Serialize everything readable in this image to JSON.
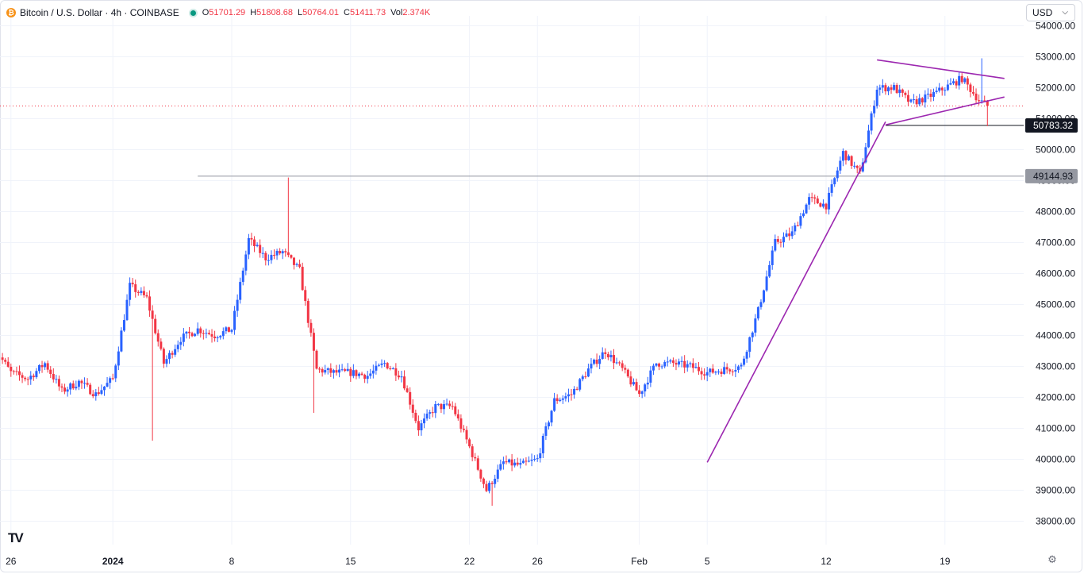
{
  "header": {
    "symbol_title": "Bitcoin / U.S. Dollar · 4h · COINBASE",
    "icon_glyph": "₿",
    "ohlc": [
      {
        "k": "O",
        "v": "51701.29"
      },
      {
        "k": "H",
        "v": "51808.68"
      },
      {
        "k": "L",
        "v": "50764.01"
      },
      {
        "k": "C",
        "v": "51411.73"
      },
      {
        "k": "Vol",
        "v": "2.374K"
      }
    ]
  },
  "currency_select": {
    "value": "USD",
    "chevron_icon": "chevron-down-icon"
  },
  "logo": {
    "text": "TV",
    "icon": "tradingview-logo-icon"
  },
  "settings": {
    "icon": "settings-icon",
    "glyph": "⚙"
  },
  "colors": {
    "up": "#2962ff",
    "down": "#f23645",
    "trendline": "#9c27b0",
    "hline": "#9598a1",
    "grid": "#f0f3fa",
    "axis_text": "#131722"
  },
  "chart_data": {
    "type": "candlestick",
    "title": "Bitcoin / U.S. Dollar · 4h · COINBASE",
    "y_range": [
      37400,
      54300
    ],
    "y_ticks": [
      54000,
      53000,
      52000,
      51000,
      50000,
      49000,
      48000,
      47000,
      46000,
      45000,
      44000,
      43000,
      42000,
      41000,
      40000,
      39000,
      38000
    ],
    "y_tick_labels": [
      "54000.00",
      "53000.00",
      "52000.00",
      "51000.00",
      "50000.00",
      "49000.00",
      "48000.00",
      "47000.00",
      "46000.00",
      "45000.00",
      "44000.00",
      "43000.00",
      "42000.00",
      "41000.00",
      "40000.00",
      "39000.00",
      "38000.00"
    ],
    "x_labels": [
      {
        "label": "26",
        "date": "2023-12-26"
      },
      {
        "label": "2024",
        "date": "2024-01-01",
        "bold": true
      },
      {
        "label": "8",
        "date": "2024-01-08"
      },
      {
        "label": "15",
        "date": "2024-01-15"
      },
      {
        "label": "22",
        "date": "2024-01-22"
      },
      {
        "label": "26",
        "date": "2024-01-26"
      },
      {
        "label": "Feb",
        "date": "2024-02-01"
      },
      {
        "label": "5",
        "date": "2024-02-05"
      },
      {
        "label": "12",
        "date": "2024-02-12"
      },
      {
        "label": "19",
        "date": "2024-02-19"
      }
    ],
    "horizontal_lines": [
      {
        "price": 49144.93,
        "label": "49144.93",
        "style": "grey"
      },
      {
        "price": 50783.32,
        "label": "50783.32",
        "style": "black"
      }
    ],
    "last_price": 51411.73,
    "trendlines": [
      {
        "from": [
          "2024-02-05",
          39900
        ],
        "to": [
          "2024-02-15 12:00",
          50900
        ]
      },
      {
        "from": [
          "2024-02-15 12:00",
          50800
        ],
        "to": [
          "2024-02-22 12:00",
          51700
        ]
      },
      {
        "from": [
          "2024-02-15",
          52900
        ],
        "to": [
          "2024-02-22 12:00",
          52300
        ]
      }
    ],
    "anchors": [
      [
        "2023-12-25",
        43600
      ],
      [
        "2023-12-26",
        42800
      ],
      [
        "2023-12-27",
        42600
      ],
      [
        "2023-12-28",
        43100
      ],
      [
        "2023-12-29",
        42200
      ],
      [
        "2023-12-30",
        42500
      ],
      [
        "2023-12-31",
        42100
      ],
      [
        "2024-01-01",
        42600
      ],
      [
        "2024-01-02",
        45600
      ],
      [
        "2024-01-03",
        45200
      ],
      [
        "2024-01-04",
        43100
      ],
      [
        "2024-01-05",
        43900
      ],
      [
        "2024-01-06",
        44200
      ],
      [
        "2024-01-07",
        44000
      ],
      [
        "2024-01-08",
        44200
      ],
      [
        "2024-01-09",
        47100
      ],
      [
        "2024-01-10",
        46500
      ],
      [
        "2024-01-11",
        46700
      ],
      [
        "2024-01-12",
        46100
      ],
      [
        "2024-01-13",
        42900
      ],
      [
        "2024-01-14",
        42800
      ],
      [
        "2024-01-15",
        42800
      ],
      [
        "2024-01-16",
        42700
      ],
      [
        "2024-01-17",
        43100
      ],
      [
        "2024-01-18",
        42700
      ],
      [
        "2024-01-19",
        41000
      ],
      [
        "2024-01-20",
        41700
      ],
      [
        "2024-01-21",
        41700
      ],
      [
        "2024-01-22",
        40400
      ],
      [
        "2024-01-23",
        39000
      ],
      [
        "2024-01-24",
        39900
      ],
      [
        "2024-01-25",
        39800
      ],
      [
        "2024-01-26",
        40000
      ],
      [
        "2024-01-27",
        41900
      ],
      [
        "2024-01-28",
        42100
      ],
      [
        "2024-01-29",
        42900
      ],
      [
        "2024-01-30",
        43500
      ],
      [
        "2024-01-31",
        42900
      ],
      [
        "2024-02-01",
        42100
      ],
      [
        "2024-02-02",
        43100
      ],
      [
        "2024-02-03",
        43100
      ],
      [
        "2024-02-04",
        43000
      ],
      [
        "2024-02-05",
        42800
      ],
      [
        "2024-02-06",
        42900
      ],
      [
        "2024-02-07",
        43000
      ],
      [
        "2024-02-08",
        44800
      ],
      [
        "2024-02-09",
        47000
      ],
      [
        "2024-02-10",
        47300
      ],
      [
        "2024-02-11",
        48400
      ],
      [
        "2024-02-12",
        48200
      ],
      [
        "2024-02-13",
        49900
      ],
      [
        "2024-02-14",
        49200
      ],
      [
        "2024-02-15",
        52000
      ],
      [
        "2024-02-16",
        52000
      ],
      [
        "2024-02-17",
        51500
      ],
      [
        "2024-02-18",
        51700
      ],
      [
        "2024-02-19",
        52000
      ],
      [
        "2024-02-20",
        52300
      ],
      [
        "2024-02-21",
        51600
      ],
      [
        "2024-02-21 12:00",
        51411.73
      ]
    ],
    "spikes": [
      {
        "date": "2024-01-11 08:00",
        "high": 49100
      },
      {
        "date": "2024-01-03 08:00",
        "low": 40600
      },
      {
        "date": "2024-01-12 20:00",
        "low": 41500
      },
      {
        "date": "2024-01-23 08:00",
        "low": 38500
      },
      {
        "date": "2024-02-21 04:00",
        "high": 52950
      },
      {
        "date": "2024-02-21 12:00",
        "low": 50760
      }
    ]
  }
}
